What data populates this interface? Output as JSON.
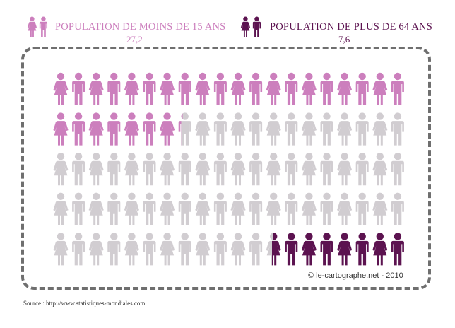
{
  "legend": {
    "young": {
      "title": "POPULATION DE MOINS DE 15 ANS",
      "value": "27,2",
      "color": "#cc7fbd"
    },
    "old": {
      "title": "POPULATION DE PLUS DE 64 ANS",
      "value": "7,6",
      "color": "#5c1350"
    },
    "rest_color": "#d1cdd1"
  },
  "chart_data": {
    "type": "pictogram",
    "units_per_icon": 1,
    "total_icons": 100,
    "series": [
      {
        "name": "POPULATION DE MOINS DE 15 ANS",
        "value": 27.2,
        "color": "#cc7fbd",
        "fill_from": "start"
      },
      {
        "name": "POPULATION DE PLUS DE 64 ANS",
        "value": 7.6,
        "color": "#5c1350",
        "fill_from": "end"
      }
    ],
    "rest_color": "#d1cdd1"
  },
  "credit": "© le-cartographe.net - 2010",
  "source": "Source : http://www.statistiques-mondiales.com"
}
